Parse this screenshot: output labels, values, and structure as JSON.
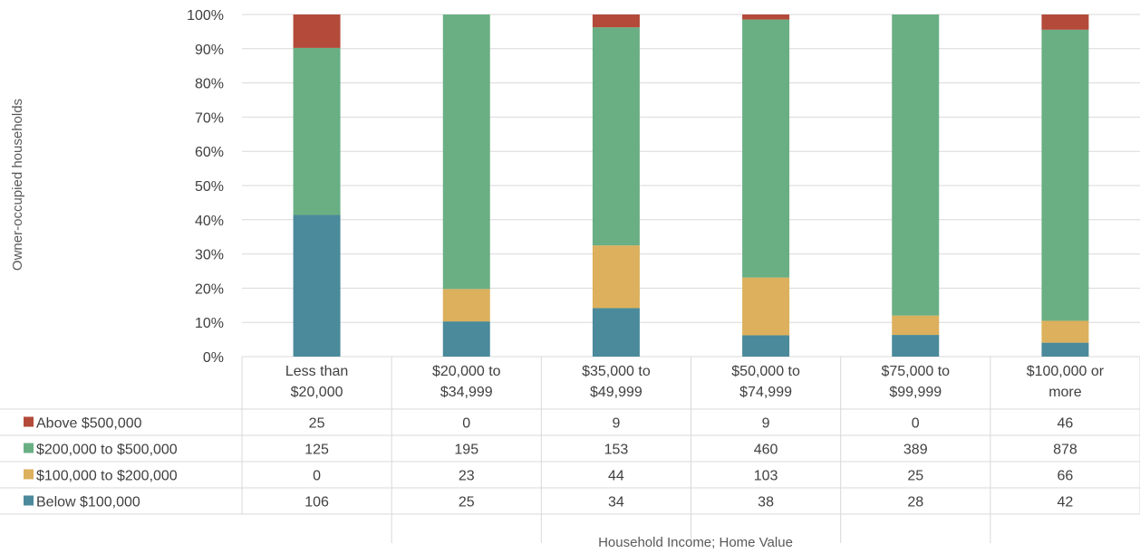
{
  "chart_data": {
    "type": "bar",
    "stacked": true,
    "normalized": true,
    "xlabel": "Household Income; Home Value",
    "ylabel": "Owner-occupied households",
    "ylim": [
      0,
      100
    ],
    "yticks": [
      "0%",
      "10%",
      "20%",
      "30%",
      "40%",
      "50%",
      "60%",
      "70%",
      "80%",
      "90%",
      "100%"
    ],
    "categories": [
      [
        "Less than",
        "$20,000"
      ],
      [
        "$20,000 to",
        "$34,999"
      ],
      [
        "$35,000 to",
        "$49,999"
      ],
      [
        "$50,000 to",
        "$74,999"
      ],
      [
        "$75,000 to",
        "$99,999"
      ],
      [
        "$100,000 or",
        "more"
      ]
    ],
    "series": [
      {
        "name": "Below $100,000",
        "color": "#4a8a9a",
        "values": [
          106,
          25,
          34,
          38,
          28,
          42
        ]
      },
      {
        "name": "$100,000 to $200,000",
        "color": "#dcb05c",
        "values": [
          0,
          23,
          44,
          103,
          25,
          66
        ]
      },
      {
        "name": "$200,000 to $500,000",
        "color": "#6aaf84",
        "values": [
          125,
          195,
          153,
          460,
          389,
          878
        ]
      },
      {
        "name": "Above $500,000",
        "color": "#b34a3a",
        "values": [
          25,
          0,
          9,
          9,
          0,
          46
        ]
      }
    ],
    "table_order": [
      "Above $500,000",
      "$200,000 to $500,000",
      "$100,000 to $200,000",
      "Below $100,000"
    ],
    "grid": true
  }
}
